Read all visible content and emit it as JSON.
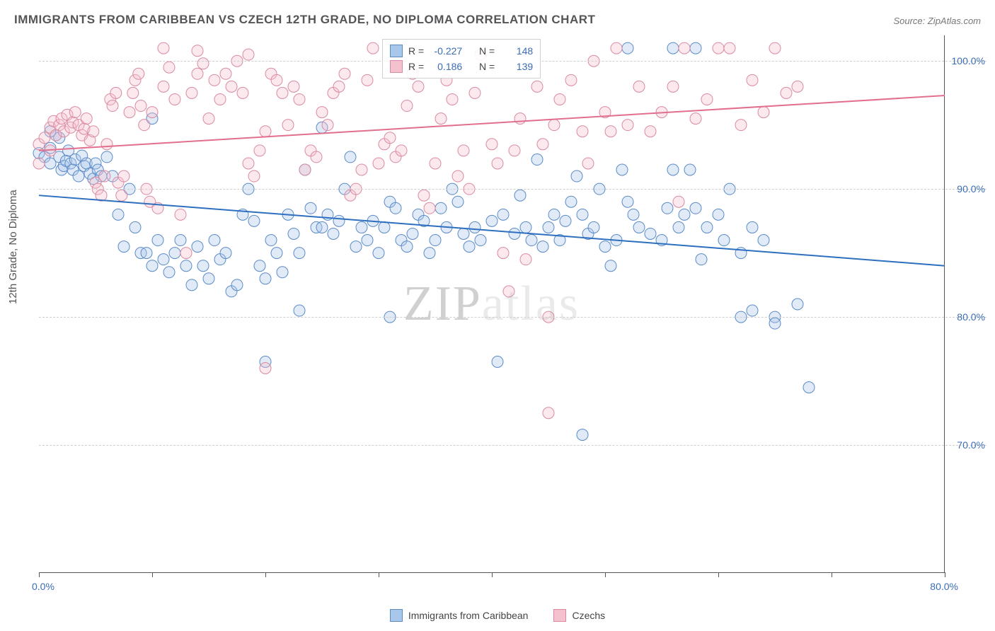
{
  "title": "IMMIGRANTS FROM CARIBBEAN VS CZECH 12TH GRADE, NO DIPLOMA CORRELATION CHART",
  "source": "Source: ZipAtlas.com",
  "watermark": {
    "left": "ZIP",
    "right": "atlas"
  },
  "ylabel": "12th Grade, No Diploma",
  "chart": {
    "type": "scatter",
    "background_color": "#ffffff",
    "grid_color": "#cfcfcf",
    "axis_color": "#555555",
    "xlim": [
      0,
      80
    ],
    "ylim": [
      60,
      102
    ],
    "xtick_positions": [
      0,
      10,
      20,
      30,
      40,
      50,
      60,
      70,
      80
    ],
    "xtick_labels_shown": {
      "first": "0.0%",
      "last": "80.0%"
    },
    "yticks": [
      70,
      80,
      90,
      100
    ],
    "ytick_labels": [
      "70.0%",
      "80.0%",
      "90.0%",
      "100.0%"
    ],
    "marker_radius": 8,
    "marker_fill_opacity": 0.35,
    "line_width": 2,
    "legend_bottom": [
      {
        "label": "Immigrants from Caribbean",
        "fill": "#a9c7ea",
        "stroke": "#5b8ac6"
      },
      {
        "label": "Czechs",
        "fill": "#f5c1cf",
        "stroke": "#d98aa0"
      }
    ],
    "series": [
      {
        "name": "Immigrants from Caribbean",
        "fill": "#a9c7ea",
        "stroke": "#5b8ac6",
        "line_color": "#2e6fc0",
        "R": "-0.227",
        "N": "148",
        "trend": {
          "x1": 0,
          "y1": 89.5,
          "x2": 80,
          "y2": 84.0
        },
        "points": [
          [
            0,
            92.8
          ],
          [
            0.5,
            92.5
          ],
          [
            1,
            92.0
          ],
          [
            1,
            93.2
          ],
          [
            1.5,
            94.2
          ],
          [
            1.8,
            92.5
          ],
          [
            2,
            91.5
          ],
          [
            2.2,
            91.8
          ],
          [
            2.4,
            92.2
          ],
          [
            2.6,
            93.0
          ],
          [
            2.8,
            92.0
          ],
          [
            3,
            91.5
          ],
          [
            3.2,
            92.3
          ],
          [
            3.5,
            91.0
          ],
          [
            3.8,
            92.6
          ],
          [
            4,
            91.8
          ],
          [
            1,
            94.5
          ],
          [
            4.2,
            92.0
          ],
          [
            4.5,
            91.2
          ],
          [
            4.8,
            90.8
          ],
          [
            5,
            92.0
          ],
          [
            5.2,
            91.5
          ],
          [
            5.5,
            91.0
          ],
          [
            6,
            92.5
          ],
          [
            6.5,
            91.0
          ],
          [
            7,
            88.0
          ],
          [
            7.5,
            85.5
          ],
          [
            1.8,
            94.0
          ],
          [
            8,
            90.0
          ],
          [
            8.5,
            87.0
          ],
          [
            9,
            85.0
          ],
          [
            9.5,
            85.0
          ],
          [
            10,
            84.0
          ],
          [
            10,
            95.5
          ],
          [
            10.5,
            86.0
          ],
          [
            11,
            84.5
          ],
          [
            11.5,
            83.5
          ],
          [
            12,
            85.0
          ],
          [
            12.5,
            86.0
          ],
          [
            13,
            84.0
          ],
          [
            13.5,
            82.5
          ],
          [
            14,
            85.5
          ],
          [
            14.5,
            84.0
          ],
          [
            15,
            83.0
          ],
          [
            15.5,
            86.0
          ],
          [
            16,
            84.5
          ],
          [
            16.5,
            85.0
          ],
          [
            17,
            82.0
          ],
          [
            17.5,
            82.5
          ],
          [
            18,
            88.0
          ],
          [
            18.5,
            90.0
          ],
          [
            19,
            87.5
          ],
          [
            19.5,
            84.0
          ],
          [
            20,
            83.0
          ],
          [
            20,
            76.5
          ],
          [
            20.5,
            86.0
          ],
          [
            21,
            85.0
          ],
          [
            21.5,
            83.5
          ],
          [
            22,
            88.0
          ],
          [
            22.5,
            86.5
          ],
          [
            23,
            85.0
          ],
          [
            23.5,
            91.5
          ],
          [
            24,
            88.5
          ],
          [
            24.5,
            87.0
          ],
          [
            25,
            87.0
          ],
          [
            25,
            94.8
          ],
          [
            25.5,
            88.0
          ],
          [
            26,
            86.5
          ],
          [
            26.5,
            87.5
          ],
          [
            27,
            90.0
          ],
          [
            27.5,
            92.5
          ],
          [
            28,
            85.5
          ],
          [
            28.5,
            87.0
          ],
          [
            29,
            86.0
          ],
          [
            29.5,
            87.5
          ],
          [
            30,
            85.0
          ],
          [
            30.5,
            87.0
          ],
          [
            31,
            89.0
          ],
          [
            31.5,
            88.5
          ],
          [
            32,
            86.0
          ],
          [
            32.5,
            85.5
          ],
          [
            33,
            86.5
          ],
          [
            33.5,
            88.0
          ],
          [
            34,
            87.5
          ],
          [
            34.5,
            85.0
          ],
          [
            35,
            86.0
          ],
          [
            31,
            80.0
          ],
          [
            35.5,
            88.5
          ],
          [
            36,
            87.0
          ],
          [
            36.5,
            90.0
          ],
          [
            37,
            89.0
          ],
          [
            37.5,
            86.5
          ],
          [
            38,
            85.5
          ],
          [
            38.5,
            87.0
          ],
          [
            39,
            86.0
          ],
          [
            40,
            87.5
          ],
          [
            40.5,
            76.5
          ],
          [
            41,
            88.0
          ],
          [
            42,
            86.5
          ],
          [
            42.5,
            89.5
          ],
          [
            43,
            87.0
          ],
          [
            43.5,
            86.0
          ],
          [
            44,
            92.3
          ],
          [
            44.5,
            85.5
          ],
          [
            45,
            87.0
          ],
          [
            45.5,
            88.0
          ],
          [
            46,
            86.0
          ],
          [
            46.5,
            87.5
          ],
          [
            47,
            89.0
          ],
          [
            47.5,
            91.0
          ],
          [
            48,
            88.0
          ],
          [
            48.5,
            86.5
          ],
          [
            49,
            87.0
          ],
          [
            49.5,
            90.0
          ],
          [
            50,
            85.5
          ],
          [
            50.5,
            84.0
          ],
          [
            51,
            86.0
          ],
          [
            51.5,
            91.5
          ],
          [
            52,
            89.0
          ],
          [
            52.5,
            88.0
          ],
          [
            53,
            87.0
          ],
          [
            54,
            86.5
          ],
          [
            48,
            70.8
          ],
          [
            55,
            86.0
          ],
          [
            55.5,
            88.5
          ],
          [
            56,
            91.5
          ],
          [
            56.5,
            87.0
          ],
          [
            57,
            88.0
          ],
          [
            52,
            101.0
          ],
          [
            57.5,
            91.5
          ],
          [
            58,
            88.5
          ],
          [
            58.5,
            84.5
          ],
          [
            59,
            87.0
          ],
          [
            56,
            101.0
          ],
          [
            60,
            88.0
          ],
          [
            60.5,
            86.0
          ],
          [
            61,
            90.0
          ],
          [
            62,
            85.0
          ],
          [
            62,
            80.0
          ],
          [
            63,
            87.0
          ],
          [
            63,
            80.5
          ],
          [
            64,
            86.0
          ],
          [
            65,
            80.0
          ],
          [
            65,
            79.5
          ],
          [
            67,
            81.0
          ],
          [
            68,
            74.5
          ],
          [
            58,
            101.0
          ],
          [
            23,
            80.5
          ]
        ]
      },
      {
        "name": "Czechs",
        "fill": "#f5c1cf",
        "stroke": "#d98aa0",
        "line_color": "#e26f8e",
        "R": "0.186",
        "N": "139",
        "trend": {
          "x1": 0,
          "y1": 93.0,
          "x2": 80,
          "y2": 97.3
        },
        "points": [
          [
            0,
            93.5
          ],
          [
            0,
            92.0
          ],
          [
            0.5,
            94.0
          ],
          [
            1,
            94.8
          ],
          [
            1,
            93.0
          ],
          [
            1.3,
            95.3
          ],
          [
            1.5,
            94.2
          ],
          [
            1.8,
            95.0
          ],
          [
            2,
            95.5
          ],
          [
            2.2,
            94.5
          ],
          [
            2.5,
            95.8
          ],
          [
            2.8,
            94.8
          ],
          [
            3,
            95.2
          ],
          [
            3.2,
            96.0
          ],
          [
            3.5,
            95.0
          ],
          [
            3.8,
            94.2
          ],
          [
            4,
            94.7
          ],
          [
            4.2,
            95.5
          ],
          [
            4.5,
            93.8
          ],
          [
            4.8,
            94.5
          ],
          [
            5,
            90.5
          ],
          [
            5.2,
            90.0
          ],
          [
            5.5,
            89.5
          ],
          [
            5.8,
            91.0
          ],
          [
            6,
            93.5
          ],
          [
            6.3,
            97.0
          ],
          [
            6.5,
            96.5
          ],
          [
            6.8,
            97.5
          ],
          [
            7,
            90.5
          ],
          [
            7.3,
            89.5
          ],
          [
            7.5,
            91.0
          ],
          [
            8,
            96.0
          ],
          [
            8.3,
            97.5
          ],
          [
            8.5,
            98.5
          ],
          [
            8.8,
            99.0
          ],
          [
            9,
            96.5
          ],
          [
            9.3,
            95.0
          ],
          [
            9.5,
            90.0
          ],
          [
            9.8,
            89.0
          ],
          [
            10,
            96.0
          ],
          [
            10.5,
            88.5
          ],
          [
            11,
            98.0
          ],
          [
            11.5,
            99.5
          ],
          [
            12,
            97.0
          ],
          [
            12.5,
            88.0
          ],
          [
            13,
            85.0
          ],
          [
            13.5,
            97.5
          ],
          [
            14,
            99.0
          ],
          [
            14.5,
            99.8
          ],
          [
            15,
            95.5
          ],
          [
            15.5,
            98.5
          ],
          [
            16,
            97.0
          ],
          [
            16.5,
            99.0
          ],
          [
            17,
            98.0
          ],
          [
            17.5,
            100.0
          ],
          [
            18,
            97.5
          ],
          [
            18.5,
            92.0
          ],
          [
            19,
            91.0
          ],
          [
            19.5,
            93.0
          ],
          [
            20,
            94.5
          ],
          [
            20.5,
            99.0
          ],
          [
            21,
            98.5
          ],
          [
            21.5,
            97.5
          ],
          [
            22,
            95.0
          ],
          [
            20,
            76.0
          ],
          [
            22.5,
            98.0
          ],
          [
            23,
            97.0
          ],
          [
            23.5,
            91.5
          ],
          [
            24,
            93.0
          ],
          [
            24.5,
            92.5
          ],
          [
            25,
            96.0
          ],
          [
            25.5,
            95.0
          ],
          [
            26,
            97.5
          ],
          [
            26.5,
            98.0
          ],
          [
            27,
            99.0
          ],
          [
            27.5,
            89.5
          ],
          [
            28,
            90.0
          ],
          [
            28.5,
            91.5
          ],
          [
            29,
            98.5
          ],
          [
            29.5,
            101.0
          ],
          [
            30,
            92.0
          ],
          [
            30.5,
            93.5
          ],
          [
            31,
            94.0
          ],
          [
            31.5,
            92.5
          ],
          [
            32,
            93.0
          ],
          [
            32.5,
            96.5
          ],
          [
            33,
            99.0
          ],
          [
            33.5,
            98.0
          ],
          [
            34,
            89.5
          ],
          [
            34.5,
            88.5
          ],
          [
            35,
            92.0
          ],
          [
            35.5,
            95.5
          ],
          [
            36,
            98.5
          ],
          [
            36.5,
            97.0
          ],
          [
            37,
            91.0
          ],
          [
            37.5,
            93.0
          ],
          [
            38,
            90.0
          ],
          [
            38.5,
            97.5
          ],
          [
            39,
            100.5
          ],
          [
            40,
            93.5
          ],
          [
            40.5,
            92.0
          ],
          [
            41,
            85.0
          ],
          [
            41.5,
            82.0
          ],
          [
            42,
            93.0
          ],
          [
            42.5,
            95.5
          ],
          [
            43,
            84.5
          ],
          [
            44,
            98.0
          ],
          [
            44.5,
            93.5
          ],
          [
            45,
            80.0
          ],
          [
            45.5,
            95.0
          ],
          [
            46,
            97.0
          ],
          [
            47,
            98.5
          ],
          [
            48,
            94.5
          ],
          [
            48.5,
            92.0
          ],
          [
            49,
            100.0
          ],
          [
            50,
            96.0
          ],
          [
            50.5,
            94.5
          ],
          [
            51,
            101.0
          ],
          [
            52,
            95.0
          ],
          [
            53,
            98.0
          ],
          [
            54,
            94.5
          ],
          [
            55,
            96.0
          ],
          [
            56,
            98.0
          ],
          [
            56.5,
            89.0
          ],
          [
            57,
            101.0
          ],
          [
            45,
            72.5
          ],
          [
            58,
            95.5
          ],
          [
            59,
            97.0
          ],
          [
            60,
            101.0
          ],
          [
            61,
            101.0
          ],
          [
            62,
            95.0
          ],
          [
            63,
            98.5
          ],
          [
            64,
            96.0
          ],
          [
            65,
            101.0
          ],
          [
            66,
            97.5
          ],
          [
            67,
            98.0
          ],
          [
            11,
            101.0
          ],
          [
            14,
            100.8
          ],
          [
            18.5,
            100.5
          ]
        ]
      }
    ]
  }
}
